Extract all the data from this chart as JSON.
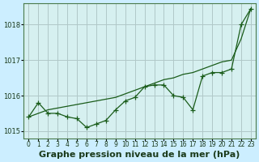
{
  "title": "Graphe pression niveau de la mer (hPa)",
  "background_color": "#cceeff",
  "plot_bg_color": "#d6f0f0",
  "grid_color": "#b0c8c8",
  "line_color": "#1a5c1a",
  "x_ticks": [
    0,
    1,
    2,
    3,
    4,
    5,
    6,
    7,
    8,
    9,
    10,
    11,
    12,
    13,
    14,
    15,
    16,
    17,
    18,
    19,
    20,
    21,
    22,
    23
  ],
  "ylim": [
    1014.8,
    1018.6
  ],
  "yticks": [
    1015,
    1016,
    1017,
    1018
  ],
  "data_y": [
    1015.4,
    1015.8,
    1015.5,
    1015.5,
    1015.4,
    1015.35,
    1015.1,
    1015.2,
    1015.3,
    1015.6,
    1015.85,
    1015.95,
    1016.25,
    1016.3,
    1016.3,
    1016.0,
    1015.95,
    1015.6,
    1016.55,
    1016.65,
    1016.65,
    1016.75,
    1018.0,
    1018.45
  ],
  "trend_y": [
    1015.4,
    1015.5,
    1015.6,
    1015.65,
    1015.7,
    1015.75,
    1015.8,
    1015.85,
    1015.9,
    1015.95,
    1016.05,
    1016.15,
    1016.25,
    1016.35,
    1016.45,
    1016.5,
    1016.6,
    1016.65,
    1016.75,
    1016.85,
    1016.95,
    1017.0,
    1017.6,
    1018.45
  ],
  "title_fontsize": 8,
  "tick_fontsize": 6
}
